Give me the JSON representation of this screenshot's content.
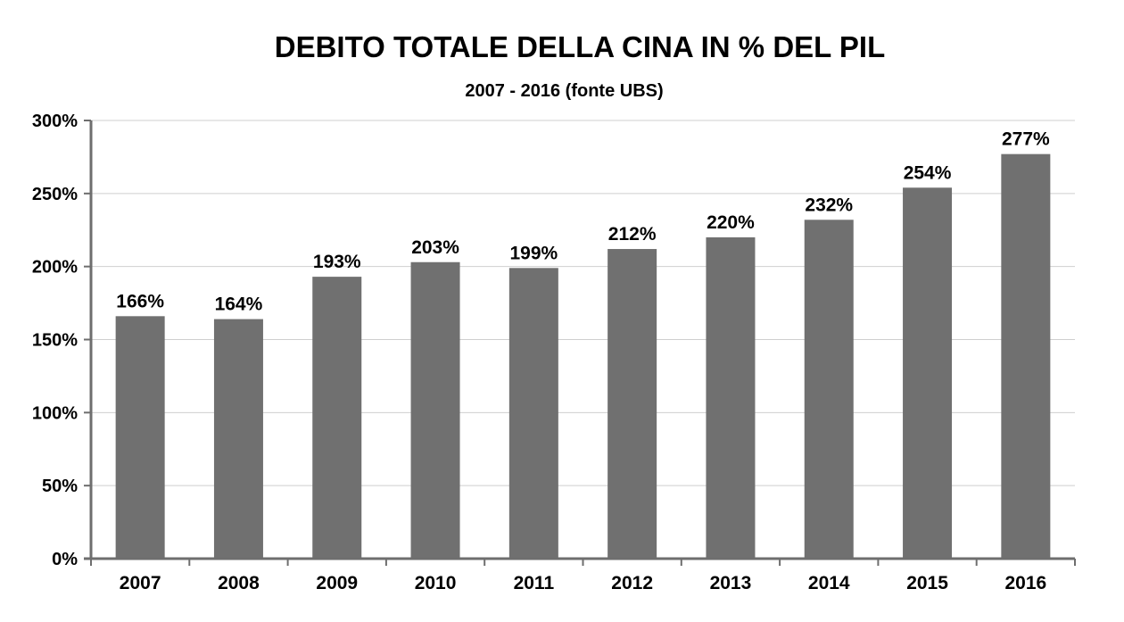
{
  "chart_data": {
    "type": "bar",
    "title": "DEBITO TOTALE DELLA CINA IN % DEL PIL",
    "subtitle": "2007 - 2016 (fonte UBS)",
    "categories": [
      "2007",
      "2008",
      "2009",
      "2010",
      "2011",
      "2012",
      "2013",
      "2014",
      "2015",
      "2016"
    ],
    "values": [
      166,
      164,
      193,
      203,
      199,
      212,
      220,
      232,
      254,
      277
    ],
    "data_labels": [
      "166%",
      "164%",
      "193%",
      "203%",
      "199%",
      "212%",
      "220%",
      "232%",
      "254%",
      "277%"
    ],
    "ylim": [
      0,
      300
    ],
    "yticks": [
      0,
      50,
      100,
      150,
      200,
      250,
      300
    ],
    "ytick_labels": [
      "0%",
      "50%",
      "100%",
      "150%",
      "200%",
      "250%",
      "300%"
    ],
    "xlabel": "",
    "ylabel": "",
    "grid": true,
    "legend": "none",
    "bar_color": "#707070",
    "grid_color": "#cfcfcf",
    "axis_color": "#6e6e6e"
  }
}
